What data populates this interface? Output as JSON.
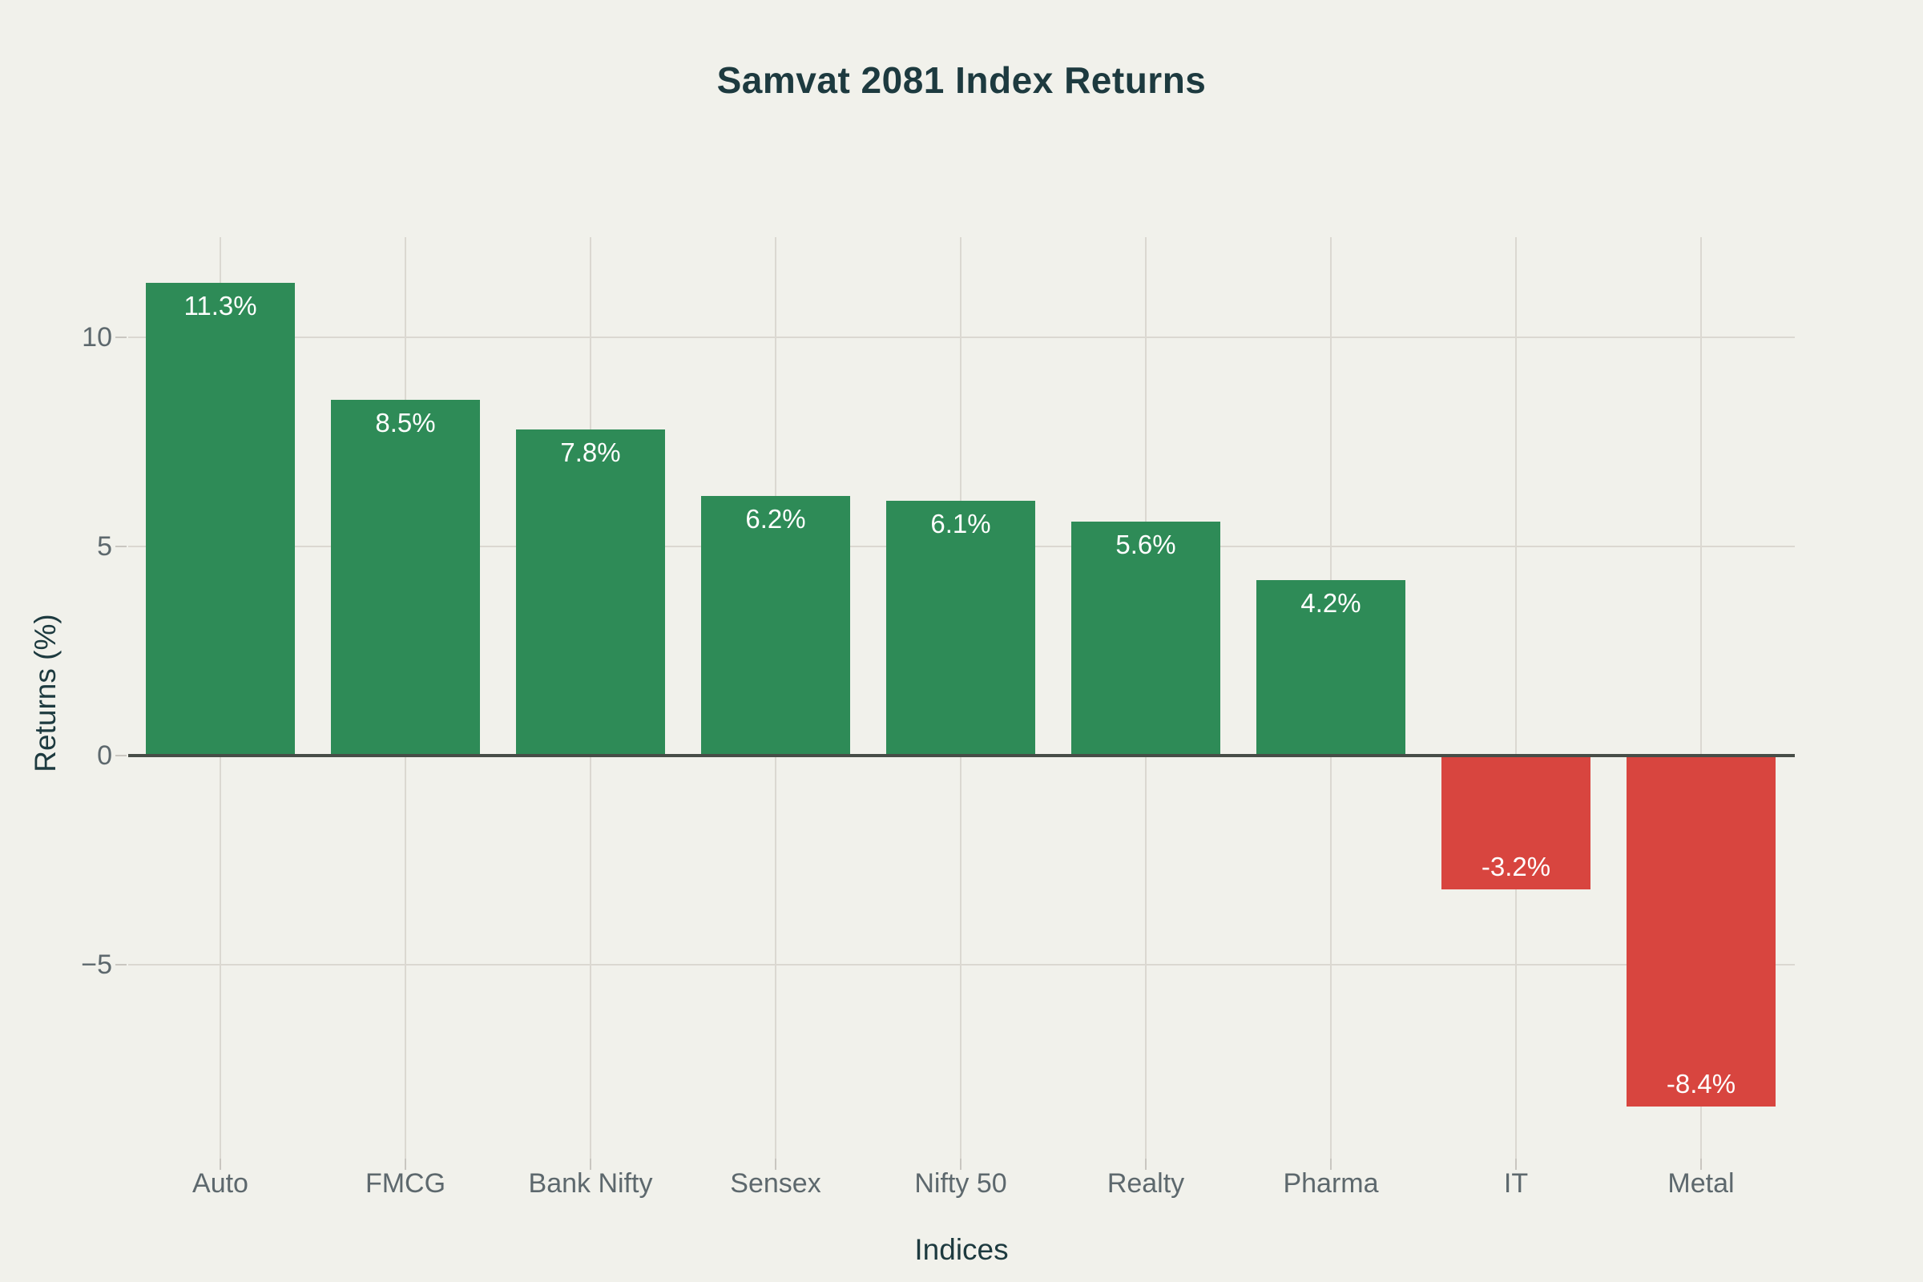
{
  "colors": {
    "background": "#f1f1eb",
    "positive_bar": "#2e8b57",
    "negative_bar": "#d8453f",
    "gridline": "#dbd8d1",
    "zero_line": "#474d47",
    "heading_text": "#1d3a3f",
    "tick_text": "#5d686d",
    "bar_label_text": "#ffffff"
  },
  "chart_data": {
    "type": "bar",
    "title": "Samvat 2081 Index Returns",
    "xlabel": "Indices",
    "ylabel": "Returns (%)",
    "categories": [
      "Auto",
      "FMCG",
      "Bank Nifty",
      "Sensex",
      "Nifty 50",
      "Realty",
      "Pharma",
      "IT",
      "Metal"
    ],
    "values": [
      11.3,
      8.5,
      7.8,
      6.2,
      6.1,
      5.6,
      4.2,
      -3.2,
      -8.4
    ],
    "bar_labels": [
      "11.3%",
      "8.5%",
      "7.8%",
      "6.2%",
      "6.1%",
      "5.6%",
      "4.2%",
      "-3.2%",
      "-8.4%"
    ],
    "yticks": [
      {
        "value": 10,
        "label": "10"
      },
      {
        "value": 5,
        "label": "5"
      },
      {
        "value": 0,
        "label": "0"
      },
      {
        "value": -5,
        "label": "−5"
      }
    ],
    "ylim": [
      -9.6,
      12.4
    ],
    "grid": true,
    "legend": false
  }
}
